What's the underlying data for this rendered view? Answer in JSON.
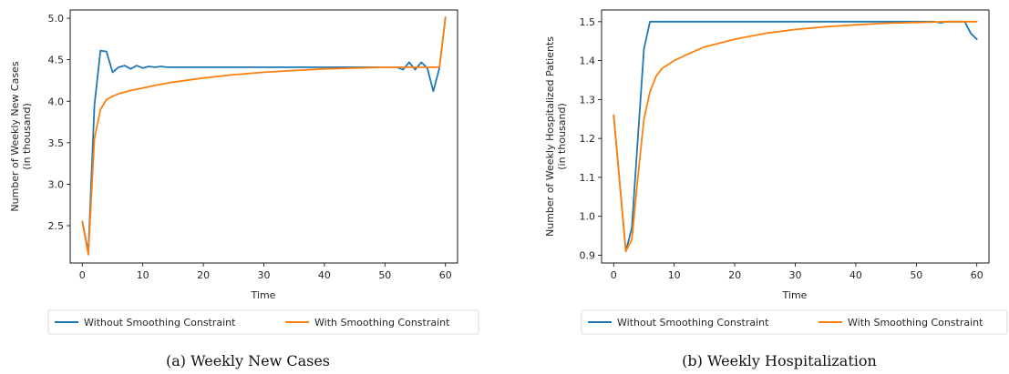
{
  "chart_data": [
    {
      "type": "line",
      "caption": "(a) Weekly New Cases",
      "xlabel": "Time",
      "ylabel": [
        "Number of Weekly New Cases",
        "(in thousand)"
      ],
      "xlim": [
        -2,
        62
      ],
      "ylim": [
        2.05,
        5.1
      ],
      "xticks": [
        0,
        10,
        20,
        30,
        40,
        50,
        60
      ],
      "yticks": [
        2.5,
        3.0,
        3.5,
        4.0,
        4.5,
        5.0
      ],
      "ytick_labels": [
        "2.5",
        "3.0",
        "3.5",
        "4.0",
        "4.5",
        "5.0"
      ],
      "series": [
        {
          "name": "Without Smoothing Constraint",
          "color": "#1f77b4",
          "x": [
            0,
            1,
            2,
            3,
            4,
            5,
            6,
            7,
            8,
            9,
            10,
            11,
            12,
            13,
            14,
            15,
            20,
            30,
            40,
            50,
            52,
            53,
            54,
            55,
            56,
            57,
            58,
            59,
            60
          ],
          "y": [
            2.55,
            2.18,
            3.95,
            4.61,
            4.6,
            4.35,
            4.41,
            4.43,
            4.39,
            4.43,
            4.4,
            4.42,
            4.41,
            4.42,
            4.41,
            4.41,
            4.41,
            4.41,
            4.41,
            4.41,
            4.41,
            4.38,
            4.47,
            4.38,
            4.47,
            4.4,
            4.12,
            4.4,
            5.01
          ]
        },
        {
          "name": "With Smoothing Constraint",
          "color": "#ff7f0e",
          "x": [
            0,
            1,
            2,
            3,
            4,
            5,
            6,
            8,
            10,
            12,
            15,
            20,
            25,
            30,
            35,
            40,
            45,
            50,
            55,
            59,
            60
          ],
          "y": [
            2.55,
            2.15,
            3.55,
            3.9,
            4.02,
            4.06,
            4.09,
            4.13,
            4.16,
            4.19,
            4.23,
            4.28,
            4.32,
            4.35,
            4.37,
            4.39,
            4.4,
            4.41,
            4.41,
            4.41,
            5.01
          ]
        }
      ]
    },
    {
      "type": "line",
      "caption": "(b) Weekly Hospitalization",
      "xlabel": "Time",
      "ylabel": [
        "Number of Weekly Hospitalized Patients",
        "(in thousand)"
      ],
      "xlim": [
        -2,
        62
      ],
      "ylim": [
        0.88,
        1.53
      ],
      "xticks": [
        0,
        10,
        20,
        30,
        40,
        50,
        60
      ],
      "yticks": [
        0.9,
        1.0,
        1.1,
        1.2,
        1.3,
        1.4,
        1.5
      ],
      "ytick_labels": [
        "0.9",
        "1.0",
        "1.1",
        "1.2",
        "1.3",
        "1.4",
        "1.5"
      ],
      "series": [
        {
          "name": "Without Smoothing Constraint",
          "color": "#1f77b4",
          "x": [
            0,
            2,
            3,
            4,
            5,
            6,
            10,
            20,
            30,
            40,
            50,
            53,
            54,
            55,
            56,
            57,
            58,
            59,
            60
          ],
          "y": [
            1.26,
            0.91,
            0.97,
            1.2,
            1.43,
            1.5,
            1.5,
            1.5,
            1.5,
            1.5,
            1.5,
            1.5,
            1.497,
            1.5,
            1.5,
            1.5,
            1.5,
            1.47,
            1.455
          ]
        },
        {
          "name": "With Smoothing Constraint",
          "color": "#ff7f0e",
          "x": [
            0,
            2,
            3,
            4,
            5,
            6,
            7,
            8,
            10,
            12,
            15,
            20,
            25,
            30,
            35,
            40,
            45,
            50,
            55,
            60
          ],
          "y": [
            1.26,
            0.91,
            0.94,
            1.1,
            1.25,
            1.32,
            1.36,
            1.38,
            1.4,
            1.415,
            1.435,
            1.455,
            1.47,
            1.48,
            1.487,
            1.492,
            1.496,
            1.498,
            1.5,
            1.5
          ]
        }
      ]
    }
  ]
}
